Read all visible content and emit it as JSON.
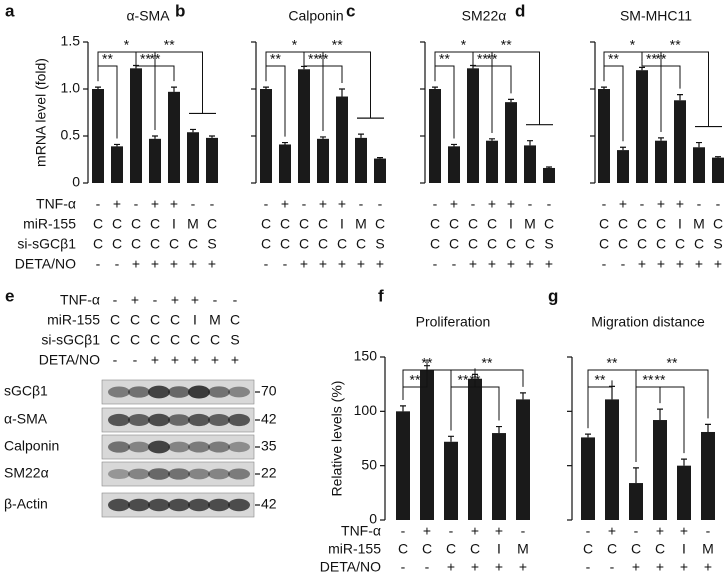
{
  "chart_data": [
    {
      "label": "a",
      "type": "bar",
      "title": "α-SMA",
      "y_label": "mRNA level (fold)",
      "color": "#1a1a1a",
      "values": [
        1.0,
        0.39,
        1.22,
        0.47,
        0.97,
        0.54,
        0.48
      ],
      "errors": [
        0.02,
        0.02,
        0.03,
        0.03,
        0.05,
        0.03,
        0.02
      ],
      "ylim": [
        0,
        1.5
      ],
      "yticks": [
        0,
        0.5,
        {
          "value": 1,
          "label": "1.0"
        },
        1.5
      ],
      "tick_labels": true,
      "significance": [
        "**",
        "*",
        "**",
        "**",
        "**"
      ],
      "row_labels": [
        "TNF-α",
        "miR-155",
        "si-sGCβ1",
        "DETA/NO"
      ],
      "conditions": [
        [
          "-",
          "+",
          "-",
          "+",
          "+",
          "-",
          "-"
        ],
        [
          "C",
          "C",
          "C",
          "C",
          "I",
          "M",
          "C"
        ],
        [
          "C",
          "C",
          "C",
          "C",
          "C",
          "C",
          "S"
        ],
        [
          "-",
          "-",
          "+",
          "+",
          "+",
          "+",
          "+"
        ]
      ]
    },
    {
      "label": "b",
      "type": "bar",
      "title": "Calponin",
      "color": "#1a1a1a",
      "values": [
        1.0,
        0.41,
        1.21,
        0.47,
        0.92,
        0.48,
        0.26
      ],
      "errors": [
        0.02,
        0.02,
        0.03,
        0.02,
        0.08,
        0.04,
        0.01
      ],
      "ylim": [
        0,
        1.5
      ],
      "yticks": [
        0,
        0.5,
        1,
        1.5
      ],
      "tick_labels": false,
      "significance": [
        "**",
        "*",
        "**",
        "**",
        "**"
      ],
      "conditions": [
        [
          "-",
          "+",
          "-",
          "+",
          "+",
          "-",
          "-"
        ],
        [
          "C",
          "C",
          "C",
          "C",
          "I",
          "M",
          "C"
        ],
        [
          "C",
          "C",
          "C",
          "C",
          "C",
          "C",
          "S"
        ],
        [
          "-",
          "-",
          "+",
          "+",
          "+",
          "+",
          "+"
        ]
      ]
    },
    {
      "label": "c",
      "type": "bar",
      "title": "SM22α",
      "color": "#1a1a1a",
      "values": [
        1.0,
        0.39,
        1.22,
        0.45,
        0.86,
        0.4,
        0.16
      ],
      "errors": [
        0.02,
        0.02,
        0.03,
        0.02,
        0.03,
        0.05,
        0.01
      ],
      "ylim": [
        0,
        1.5
      ],
      "yticks": [
        0,
        0.5,
        1,
        1.5
      ],
      "tick_labels": false,
      "significance": [
        "**",
        "*",
        "**",
        "**",
        "**"
      ],
      "conditions": [
        [
          "-",
          "+",
          "-",
          "+",
          "+",
          "-",
          "-"
        ],
        [
          "C",
          "C",
          "C",
          "C",
          "I",
          "M",
          "C"
        ],
        [
          "C",
          "C",
          "C",
          "C",
          "C",
          "C",
          "S"
        ],
        [
          "-",
          "-",
          "+",
          "+",
          "+",
          "+",
          "+"
        ]
      ]
    },
    {
      "label": "d",
      "type": "bar",
      "title": "SM-MHC11",
      "color": "#1a1a1a",
      "values": [
        1.0,
        0.35,
        1.2,
        0.45,
        0.88,
        0.38,
        0.27
      ],
      "errors": [
        0.02,
        0.03,
        0.03,
        0.03,
        0.06,
        0.05,
        0.01
      ],
      "ylim": [
        0,
        1.5
      ],
      "yticks": [
        0,
        0.5,
        1,
        1.5
      ],
      "tick_labels": false,
      "significance": [
        "**",
        "*",
        "**",
        "**",
        "**"
      ],
      "conditions": [
        [
          "-",
          "+",
          "-",
          "+",
          "+",
          "-",
          "-"
        ],
        [
          "C",
          "C",
          "C",
          "C",
          "I",
          "M",
          "C"
        ],
        [
          "C",
          "C",
          "C",
          "C",
          "C",
          "C",
          "S"
        ],
        [
          "-",
          "-",
          "+",
          "+",
          "+",
          "+",
          "+"
        ]
      ]
    },
    {
      "label": "f",
      "type": "bar",
      "title": "Proliferation",
      "y_label": "Relative levels (%)",
      "color": "#1a1a1a",
      "values": [
        100,
        138,
        72,
        130,
        80,
        111
      ],
      "errors": [
        5,
        4,
        5,
        4,
        6,
        6
      ],
      "ylim": [
        0,
        150
      ],
      "yticks": [
        0,
        50,
        100,
        150
      ],
      "tick_labels": true,
      "significance": [
        "**",
        "**",
        "**",
        "**",
        "**"
      ],
      "row_labels": [
        "TNF-α",
        "miR-155",
        "DETA/NO"
      ],
      "conditions": [
        [
          "-",
          "+",
          "-",
          "+",
          "+",
          "-"
        ],
        [
          "C",
          "C",
          "C",
          "C",
          "I",
          "M"
        ],
        [
          "-",
          "-",
          "+",
          "+",
          "+",
          "+"
        ]
      ]
    },
    {
      "label": "g",
      "type": "bar",
      "title": "Migration distance",
      "color": "#1a1a1a",
      "values": [
        76,
        111,
        34,
        92,
        50,
        81
      ],
      "errors": [
        3,
        12,
        14,
        10,
        6,
        7
      ],
      "ylim": [
        0,
        150
      ],
      "yticks": [
        0,
        50,
        100,
        150
      ],
      "tick_labels": false,
      "significance": [
        "**",
        "**",
        "**",
        "**",
        "**"
      ],
      "conditions": [
        [
          "-",
          "+",
          "-",
          "+",
          "+",
          "-"
        ],
        [
          "C",
          "C",
          "C",
          "C",
          "I",
          "M"
        ],
        [
          "-",
          "-",
          "+",
          "+",
          "+",
          "+"
        ]
      ]
    }
  ],
  "blot": {
    "label": "e",
    "row_labels": [
      "TNF-α",
      "miR-155",
      "si-sGCβ1",
      "DETA/NO"
    ],
    "conditions": [
      [
        "-",
        "+",
        "-",
        "+",
        "+",
        "-",
        "-"
      ],
      [
        "C",
        "C",
        "C",
        "C",
        "I",
        "M",
        "C"
      ],
      [
        "C",
        "C",
        "C",
        "C",
        "C",
        "C",
        "S"
      ],
      [
        "-",
        "-",
        "+",
        "+",
        "+",
        "+",
        "+"
      ]
    ],
    "bands": [
      {
        "name": "sGCβ1",
        "size": 70
      },
      {
        "name": "α-SMA",
        "size": 42
      },
      {
        "name": "Calponin",
        "size": 35
      },
      {
        "name": "SM22α",
        "size": 22
      },
      {
        "name": "β-Actin",
        "size": 42
      }
    ]
  }
}
